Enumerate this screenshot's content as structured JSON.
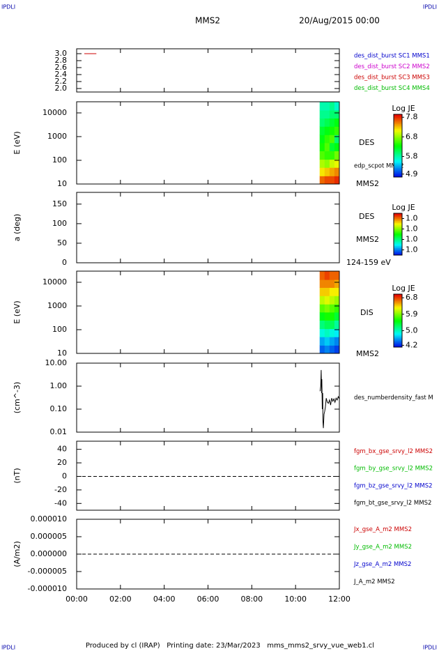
{
  "corner_labels": [
    "IPDLI",
    "IPDLI",
    "IPDLI",
    "IPDLI"
  ],
  "header": {
    "spacecraft": "MMS2",
    "date": "20/Aug/2015 00:00"
  },
  "footer": "Produced by cl (IRAP)   Printing date: 23/Mar/2023   mms_mms2_srvy_vue_web1.cl",
  "chart_data": [
    {
      "type": "line",
      "xlim": [
        0,
        12
      ],
      "ylim": [
        1.9,
        3.14
      ],
      "yticks": [
        {
          "value": 3,
          "label": "3.0"
        },
        {
          "value": 2.8,
          "label": "2.8"
        },
        {
          "value": 2.6,
          "label": "2.6"
        },
        {
          "value": 2.4,
          "label": "2.4"
        },
        {
          "value": 2.2,
          "label": "2.2"
        },
        {
          "value": 2,
          "label": "2.0"
        }
      ],
      "series": [
        {
          "name": "des_dist_burst SC1 MMS1",
          "color": "#0000cc",
          "x": [],
          "values": []
        },
        {
          "name": "des_dist_burst SC2 MMS2",
          "color": "#cc00cc",
          "x": [],
          "values": []
        },
        {
          "name": "des_dist_burst SC3 MMS3",
          "color": "#cc0000",
          "x": [
            0.35,
            0.9
          ],
          "values": [
            3,
            3
          ]
        },
        {
          "name": "des_dist_burst SC4 MMS4",
          "color": "#00bb00",
          "x": [],
          "values": []
        }
      ]
    },
    {
      "type": "heatmap",
      "ylabel": "E (eV)",
      "log": true,
      "xlim": [
        0,
        12
      ],
      "ylim": [
        10,
        29500
      ],
      "yticks": [
        10000,
        1000,
        100,
        10
      ],
      "annotations": [
        "DES",
        "edp_scpot MMS2",
        "MMS2"
      ],
      "x_bins": [
        11.1,
        11.325,
        11.55,
        11.775,
        12
      ],
      "y_bins": [
        10,
        22,
        50,
        110,
        250,
        550,
        1200,
        2700,
        6000,
        13000,
        29500
      ],
      "z": [
        [
          7.6,
          7.2,
          6.9,
          6.6,
          6.4,
          6.3,
          6.2,
          6.0,
          5.9,
          5.8
        ],
        [
          7.7,
          7.3,
          6.8,
          6.5,
          6.6,
          6.5,
          6.3,
          6.1,
          5.9,
          5.8
        ],
        [
          7.7,
          7.4,
          7.0,
          6.5,
          6.2,
          6.6,
          6.4,
          6.2,
          6.0,
          5.9
        ],
        [
          7.8,
          7.5,
          7.1,
          6.7,
          6.3,
          6.0,
          6.5,
          6.3,
          6.0,
          5.7
        ]
      ],
      "colorbar": {
        "title": "Log JE",
        "zlim": [
          4.75,
          7.95
        ],
        "ticks": [
          7.8,
          6.8,
          5.8,
          4.9
        ]
      }
    },
    {
      "type": "heatmap",
      "ylabel": "a (deg)",
      "xlim": [
        0,
        12
      ],
      "ylim": [
        0,
        180
      ],
      "yticks": [
        150,
        100,
        50,
        0
      ],
      "annotations": [
        "DES",
        "MMS2",
        "124-159 eV"
      ],
      "x_bins": [],
      "y_bins": [],
      "z": [],
      "colorbar": {
        "title": "Log JE",
        "zlim": [
          0.96,
          1.04
        ],
        "ticks": [
          {
            "value": 1.03,
            "label": "1.0"
          },
          {
            "value": 1.01,
            "label": "1.0"
          },
          {
            "value": 0.99,
            "label": "1.0"
          },
          {
            "value": 0.97,
            "label": "1.0"
          }
        ]
      }
    },
    {
      "type": "heatmap",
      "ylabel": "E (eV)",
      "log": true,
      "xlim": [
        0,
        12
      ],
      "ylim": [
        10,
        29500
      ],
      "yticks": [
        10000,
        1000,
        100,
        10
      ],
      "annotations": [
        "DIS",
        "MMS2"
      ],
      "x_bins": [
        11.1,
        11.325,
        11.55,
        11.775,
        12
      ],
      "y_bins": [
        10,
        22,
        50,
        110,
        250,
        550,
        1200,
        2700,
        6000,
        13000,
        29500
      ],
      "z": [
        [
          4.4,
          4.6,
          4.9,
          5.2,
          5.5,
          5.8,
          6.1,
          6.4,
          6.6,
          6.7
        ],
        [
          4.5,
          4.7,
          5.0,
          5.3,
          5.6,
          5.9,
          6.2,
          6.4,
          6.6,
          6.8
        ],
        [
          4.4,
          4.6,
          4.9,
          5.3,
          5.6,
          5.8,
          6.1,
          6.3,
          6.6,
          6.7
        ],
        [
          4.3,
          4.5,
          4.8,
          5.1,
          5.4,
          5.7,
          6.0,
          6.3,
          6.5,
          6.7
        ]
      ],
      "colorbar": {
        "title": "Log JE",
        "zlim": [
          4.1,
          7.0
        ],
        "ticks": [
          6.8,
          5.9,
          {
            "value": 5,
            "label": "5.0"
          },
          4.2
        ]
      }
    },
    {
      "type": "line",
      "ylabel": "(cm^-3)",
      "log": true,
      "xlim": [
        0,
        12
      ],
      "ylim": [
        0.01,
        10
      ],
      "yticks": [
        {
          "value": 10,
          "label": "10.00"
        },
        {
          "value": 1,
          "label": "1.00"
        },
        {
          "value": 0.1,
          "label": "0.10"
        },
        {
          "value": 0.01,
          "label": "0.01"
        }
      ],
      "series": [
        {
          "name": "des_numberdensity_fast M",
          "color": "#000000",
          "x": [
            11.12,
            11.15,
            11.17,
            11.19,
            11.2,
            11.22,
            11.24,
            11.25,
            11.27,
            11.3,
            11.33,
            11.36,
            11.4,
            11.45,
            11.5,
            11.55,
            11.6,
            11.65,
            11.7,
            11.75,
            11.8,
            11.85,
            11.9,
            11.95,
            12.0
          ],
          "values": [
            0.6,
            1.0,
            5.0,
            0.5,
            2.0,
            0.1,
            0.5,
            0.03,
            0.015,
            0.06,
            0.08,
            0.12,
            0.3,
            0.2,
            0.18,
            0.25,
            0.15,
            0.3,
            0.22,
            0.28,
            0.2,
            0.3,
            0.25,
            0.35,
            0.28
          ]
        }
      ]
    },
    {
      "type": "line",
      "ylabel": "(nT)",
      "xlim": [
        0,
        12
      ],
      "ylim": [
        -50,
        52
      ],
      "zero_line": true,
      "yticks": [
        40,
        20,
        0,
        -20,
        -40
      ],
      "series": [
        {
          "name": "fgm_bx_gse_srvy_l2 MMS2",
          "color": "#cc0000",
          "x": [],
          "values": []
        },
        {
          "name": "fgm_by_gse_srvy_l2 MMS2",
          "color": "#00bb00",
          "x": [],
          "values": []
        },
        {
          "name": "fgm_bz_gse_srvy_l2 MMS2",
          "color": "#0000cc",
          "x": [],
          "values": []
        },
        {
          "name": "fgm_bt_gse_srvy_l2 MMS2",
          "color": "#000000",
          "x": [],
          "values": []
        }
      ]
    },
    {
      "type": "line",
      "ylabel": "(A/m2)",
      "xlim": [
        0,
        12
      ],
      "ylim": [
        -1e-05,
        1e-05
      ],
      "zero_line": true,
      "yticks": [
        {
          "value": 1e-05,
          "label": "0.000010"
        },
        {
          "value": 5e-06,
          "label": "0.000005"
        },
        {
          "value": 0,
          "label": "0.000000"
        },
        {
          "value": -5e-06,
          "label": "-0.000005"
        },
        {
          "value": -1e-05,
          "label": "-0.000010"
        }
      ],
      "xticks": [
        {
          "value": 0,
          "label": "00:00"
        },
        {
          "value": 2,
          "label": "02:00"
        },
        {
          "value": 4,
          "label": "04:00"
        },
        {
          "value": 6,
          "label": "06:00"
        },
        {
          "value": 8,
          "label": "08:00"
        },
        {
          "value": 10,
          "label": "10:00"
        },
        {
          "value": 12,
          "label": "12:00"
        }
      ],
      "series": [
        {
          "name": "Jx_gse_A_m2 MMS2",
          "color": "#cc0000",
          "x": [],
          "values": []
        },
        {
          "name": "Jy_gse_A_m2 MMS2",
          "color": "#00bb00",
          "x": [],
          "values": []
        },
        {
          "name": "Jz_gse_A_m2 MMS2",
          "color": "#0000cc",
          "x": [],
          "values": []
        },
        {
          "name": "J_A_m2 MMS2",
          "color": "#000000",
          "x": [],
          "values": []
        }
      ]
    }
  ]
}
